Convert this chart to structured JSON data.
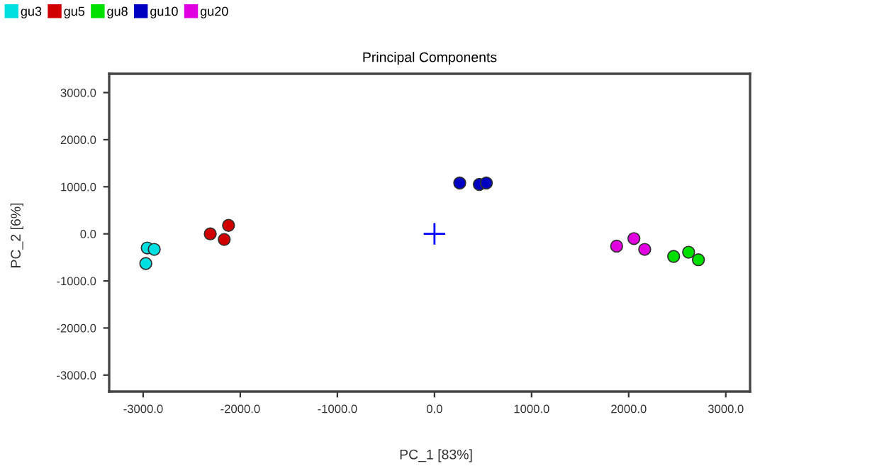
{
  "chart_data": {
    "type": "scatter",
    "title": "Principal Components",
    "xlabel": "PC_1 [83%]",
    "ylabel": "PC_2 [6%]",
    "xlim": [
      -3350,
      3250
    ],
    "ylim": [
      -3350,
      3400
    ],
    "xticks": [
      {
        "value": -3000,
        "label": "-3000.0"
      },
      {
        "value": -2000,
        "label": "-2000.0"
      },
      {
        "value": -1000,
        "label": "-1000.0"
      },
      {
        "value": 0,
        "label": "0.0"
      },
      {
        "value": 1000,
        "label": "1000.0"
      },
      {
        "value": 2000,
        "label": "2000.0"
      },
      {
        "value": 3000,
        "label": "3000.0"
      }
    ],
    "yticks": [
      {
        "value": -3000,
        "label": "-3000.0"
      },
      {
        "value": -2000,
        "label": "-2000.0"
      },
      {
        "value": -1000,
        "label": "-1000.0"
      },
      {
        "value": 0,
        "label": "0.0"
      },
      {
        "value": 1000,
        "label": "1000.0"
      },
      {
        "value": 2000,
        "label": "2000.0"
      },
      {
        "value": 3000,
        "label": "3000.0"
      }
    ],
    "grid": false,
    "legend": "top left",
    "marker": "circle",
    "series": [
      {
        "name": "gu3",
        "color": "#00e0e0",
        "x": [
          -2958,
          -2886,
          -2973
        ],
        "values": [
          -300,
          -330,
          -630
        ]
      },
      {
        "name": "gu5",
        "color": "#d00000",
        "x": [
          -2309,
          -2165,
          -2121
        ],
        "values": [
          0,
          -120,
          180
        ]
      },
      {
        "name": "gu8",
        "color": "#00e000",
        "x": [
          2463,
          2617,
          2718
        ],
        "values": [
          -480,
          -390,
          -550
        ]
      },
      {
        "name": "gu10",
        "color": "#0000c0",
        "x": [
          260,
          462,
          534
        ],
        "values": [
          1080,
          1050,
          1080
        ]
      },
      {
        "name": "gu20",
        "color": "#e000e0",
        "x": [
          1876,
          2054,
          2165
        ],
        "values": [
          -260,
          -100,
          -330
        ]
      },
      {
        "color": "#0000ff",
        "marker": "cross",
        "x": [
          0
        ],
        "values": [
          0
        ]
      }
    ]
  }
}
